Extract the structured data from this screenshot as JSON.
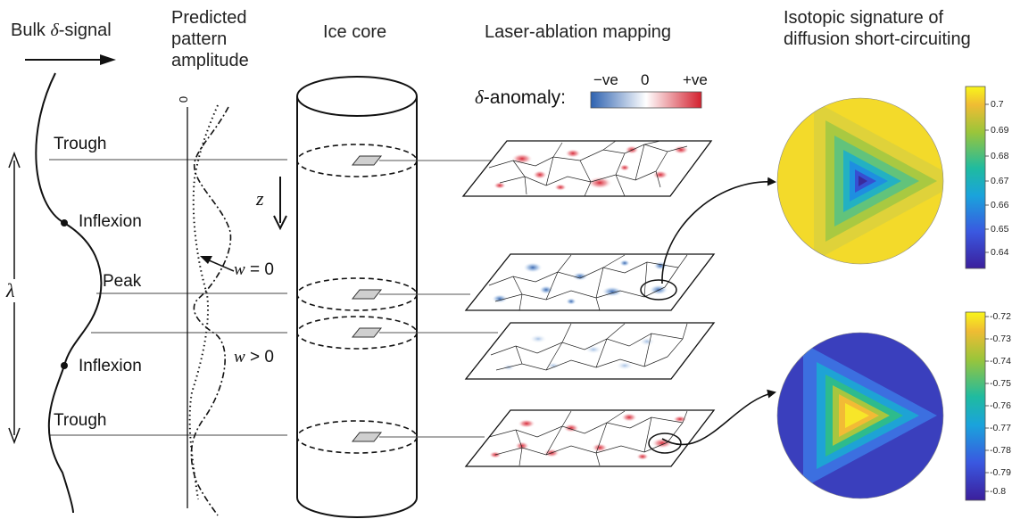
{
  "headers": {
    "bulk_signal_prefix": "Bulk ",
    "bulk_signal_symbol": "δ",
    "bulk_signal_suffix": "-signal",
    "predicted_line1": "Predicted",
    "predicted_line2": "pattern",
    "predicted_line3": "amplitude",
    "ice_core": "Ice core",
    "laser_ablation": "Laser-ablation mapping",
    "isotopic_line1": "Isotopic signature of",
    "isotopic_line2": "diffusion short-circuiting"
  },
  "signal_labels": {
    "trough_top": "Trough",
    "inflexion_top": "Inflexion",
    "peak": "Peak",
    "inflexion_bottom": "Inflexion",
    "trough_bottom": "Trough",
    "wavelength": "λ"
  },
  "amplitude_labels": {
    "zero": "0",
    "w_zero_var": "w",
    "w_zero_rel": " = 0",
    "w_pos_var": "w",
    "w_pos_rel": " > 0"
  },
  "core_labels": {
    "depth": "z"
  },
  "anomaly_legend": {
    "symbol": "δ",
    "label": "-anomaly:",
    "neg": "−ve",
    "zero": "0",
    "pos": "+ve",
    "colors": {
      "negative": "#2e62b0",
      "neutral": "#ffffff",
      "positive": "#d3202e"
    }
  },
  "colorbar_top": {
    "ticks": [
      "0.7",
      "0.69",
      "0.68",
      "0.67",
      "0.66",
      "0.65",
      "0.64"
    ]
  },
  "colorbar_bottom": {
    "ticks": [
      "-0.72",
      "-0.73",
      "-0.74",
      "-0.75",
      "-0.76",
      "-0.77",
      "-0.78",
      "-0.79",
      "-0.8"
    ]
  }
}
